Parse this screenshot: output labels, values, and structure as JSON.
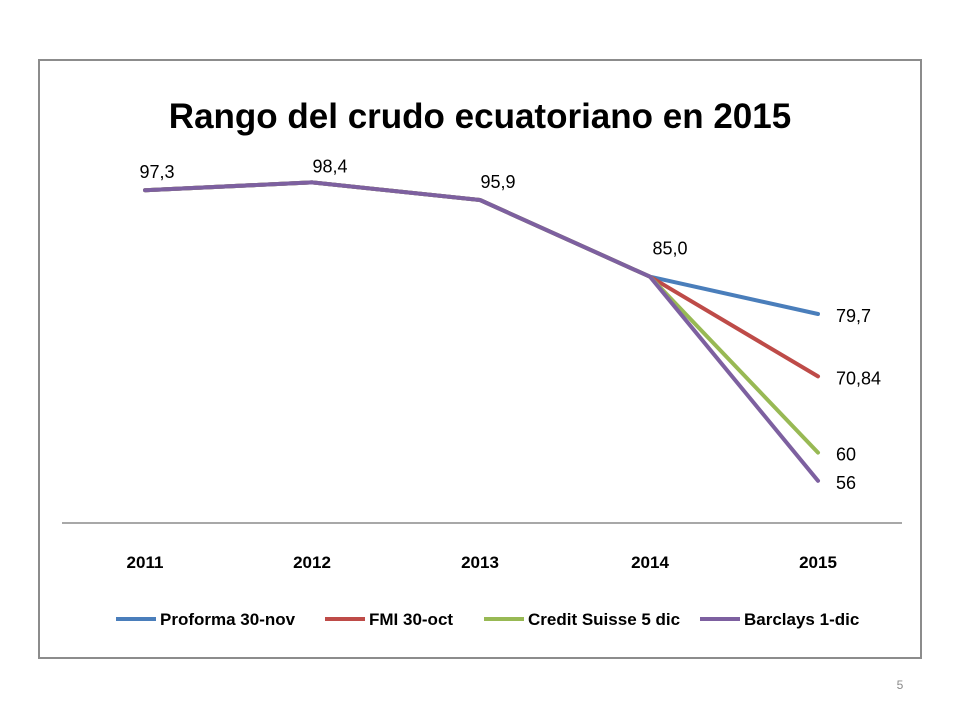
{
  "slide": {
    "page_number": "5"
  },
  "chart_data": {
    "type": "line",
    "title": "Rango del crudo ecuatoriano en 2015",
    "xlabel": "",
    "ylabel": "",
    "categories": [
      "2011",
      "2012",
      "2013",
      "2014",
      "2015"
    ],
    "ylim": [
      50,
      105
    ],
    "grid": false,
    "legend_position": "bottom",
    "shared_labels": [
      "97,3",
      "98,4",
      "95,9",
      "85,0"
    ],
    "series": [
      {
        "name": "Proforma 30-nov",
        "color": "#4a7ebb",
        "values": [
          97.3,
          98.4,
          95.9,
          85.0,
          79.7
        ],
        "end_label": "79,7"
      },
      {
        "name": "FMI 30-oct",
        "color": "#be4b48",
        "values": [
          97.3,
          98.4,
          95.9,
          85.0,
          70.84
        ],
        "end_label": "70,84"
      },
      {
        "name": "Credit Suisse 5 dic",
        "color": "#98b954",
        "values": [
          97.3,
          98.4,
          95.9,
          85.0,
          60
        ],
        "end_label": "60"
      },
      {
        "name": "Barclays 1-dic",
        "color": "#7d60a0",
        "values": [
          97.3,
          98.4,
          95.9,
          85.0,
          56
        ],
        "end_label": "56"
      }
    ]
  }
}
